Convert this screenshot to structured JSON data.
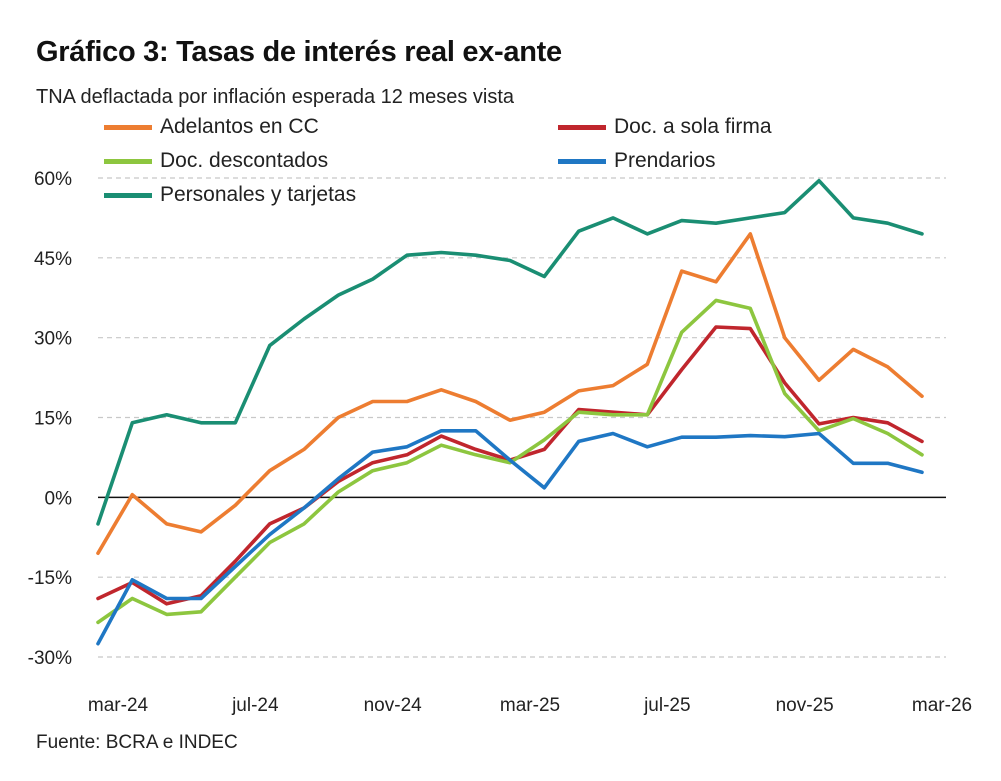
{
  "title": "Gráfico 3: Tasas de interés real ex-ante",
  "subtitle": "TNA deflactada por inflación esperada 12 meses vista",
  "source": "Fuente: BCRA e INDEC",
  "chart_data": {
    "type": "line",
    "x": [
      "mar-24",
      "abr-24",
      "may-24",
      "jun-24",
      "jul-24",
      "ago-24",
      "sep-24",
      "oct-24",
      "nov-24",
      "dic-24",
      "ene-25",
      "feb-25",
      "mar-25",
      "abr-25",
      "may-25",
      "jun-25",
      "jul-25",
      "ago-25",
      "sep-25",
      "oct-25",
      "nov-25",
      "dic-25",
      "ene-26",
      "feb-26",
      "mar-26"
    ],
    "x_tick_labels": [
      "mar-24",
      "jul-24",
      "nov-24",
      "mar-25",
      "jul-25",
      "nov-25",
      "mar-26"
    ],
    "y_tick_labels": [
      "60%",
      "45%",
      "30%",
      "15%",
      "0%",
      "-15%",
      "-30%"
    ],
    "ylim": [
      -30,
      60
    ],
    "grid": "horizontal dashed",
    "legend": "top",
    "series": [
      {
        "name": "Adelantos en CC",
        "color": "#ED7D31",
        "values": [
          -10.5,
          0.5,
          -5,
          -6.5,
          -1.5,
          5,
          9,
          15,
          18,
          18,
          20.2,
          18,
          14.5,
          16,
          20,
          21,
          25,
          42.5,
          40.5,
          49.5,
          30,
          22,
          27.8,
          24.5,
          19
        ]
      },
      {
        "name": "Doc. a sola firma",
        "color": "#C0262D",
        "values": [
          -19,
          -16,
          -20,
          -18.5,
          -12,
          -5,
          -2,
          3,
          6.5,
          8,
          11.5,
          9,
          7,
          9,
          16.5,
          16,
          15.5,
          24,
          32,
          31.7,
          21.5,
          13.8,
          15,
          14,
          10.5
        ]
      },
      {
        "name": "Doc. descontados",
        "color": "#8DC63F",
        "values": [
          -23.5,
          -19,
          -22,
          -21.5,
          -15,
          -8.5,
          -5,
          1,
          5,
          6.5,
          9.8,
          8,
          6.5,
          10.8,
          16,
          15.5,
          15.5,
          31,
          37,
          35.5,
          19.5,
          12.5,
          14.8,
          12,
          8
        ]
      },
      {
        "name": "Prendarios",
        "color": "#1F77C4",
        "values": [
          -27.5,
          -15.5,
          -19,
          -19,
          -13,
          -7,
          -2,
          3.5,
          8.5,
          9.5,
          12.5,
          12.5,
          7,
          1.8,
          10.5,
          12,
          9.5,
          11.3,
          11.3,
          11.6,
          11.4,
          12,
          6.4,
          6.4,
          4.7
        ]
      },
      {
        "name": "Personales y tarjetas",
        "color": "#1A8E73",
        "values": [
          -5,
          14,
          15.5,
          14,
          14,
          28.5,
          33.5,
          38,
          41,
          45.5,
          46,
          45.5,
          44.5,
          41.5,
          50,
          52.5,
          49.5,
          52,
          51.5,
          52.5,
          53.5,
          59.5,
          52.5,
          51.5,
          49.5
        ]
      }
    ]
  }
}
